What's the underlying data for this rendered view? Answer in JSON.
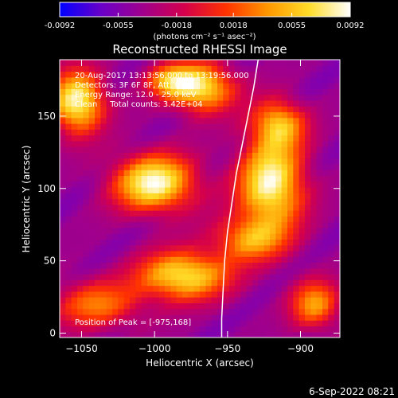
{
  "chart_data": {
    "type": "heatmap",
    "title": "Reconstructed RHESSI Image",
    "xlabel": "Heliocentric X (arcsec)",
    "ylabel": "Heliocentric Y (arcsec)",
    "xlim": [
      -1065,
      -873
    ],
    "ylim": [
      -3,
      189
    ],
    "x_ticks": [
      -1050,
      -1000,
      -950,
      -900
    ],
    "x_tick_labels": [
      "−1050",
      "−1000",
      "−950",
      "−900"
    ],
    "y_ticks": [
      0,
      50,
      100,
      150
    ],
    "y_tick_labels": [
      "0",
      "50",
      "100",
      "150"
    ],
    "colorbar": {
      "min": -0.0092,
      "max": 0.0092,
      "ticks": [
        -0.0092,
        -0.0055,
        -0.0018,
        0.0018,
        0.0055,
        0.0092
      ],
      "tick_labels": [
        "-0.0092",
        "-0.0055",
        "-0.0018",
        "0.0018",
        "0.0055",
        "0.0092"
      ],
      "label": "(photons cm⁻² s⁻¹ asec⁻²)",
      "colors": [
        "#0000ff",
        "#6a00c8",
        "#a0008c",
        "#d4004c",
        "#ff3200",
        "#ff9600",
        "#ffdc28",
        "#ffffff"
      ]
    },
    "annotations": [
      "20-Aug-2017 13:13:56.000 to 13:19:56.000",
      "Detectors: 3F 6F 8F, Att: 0",
      "Energy Range: 12.0 - 25.0 keV",
      "Clean     Total counts: 3.42E+04"
    ],
    "peak_label": "Position of Peak = [-975,168]",
    "blobs": [
      {
        "x": -1053,
        "y": 160,
        "amp": 1.0,
        "sx": 13,
        "sy": 15
      },
      {
        "x": -1000,
        "y": 104,
        "amp": 1.0,
        "sx": 20,
        "sy": 14
      },
      {
        "x": -968,
        "y": 170,
        "amp": 0.9,
        "sx": 16,
        "sy": 12
      },
      {
        "x": -920,
        "y": 103,
        "amp": 1.0,
        "sx": 16,
        "sy": 22
      },
      {
        "x": -915,
        "y": 145,
        "amp": 0.7,
        "sx": 13,
        "sy": 12
      },
      {
        "x": -935,
        "y": 65,
        "amp": 0.6,
        "sx": 18,
        "sy": 11
      },
      {
        "x": -980,
        "y": 40,
        "amp": 0.9,
        "sx": 22,
        "sy": 12
      },
      {
        "x": -1040,
        "y": 20,
        "amp": 0.55,
        "sx": 22,
        "sy": 12
      },
      {
        "x": -890,
        "y": 20,
        "amp": 0.65,
        "sx": 12,
        "sy": 12
      },
      {
        "x": -990,
        "y": 175,
        "amp": 0.55,
        "sx": 12,
        "sy": 8
      }
    ],
    "limb_points": [
      [
        -929,
        189
      ],
      [
        -932,
        170
      ],
      [
        -936,
        150
      ],
      [
        -940,
        130
      ],
      [
        -944,
        110
      ],
      [
        -947,
        90
      ],
      [
        -950,
        70
      ],
      [
        -952,
        50
      ],
      [
        -953,
        30
      ],
      [
        -954,
        10
      ],
      [
        -954,
        -3
      ]
    ]
  },
  "footer_date": "6-Sep-2022 08:21"
}
